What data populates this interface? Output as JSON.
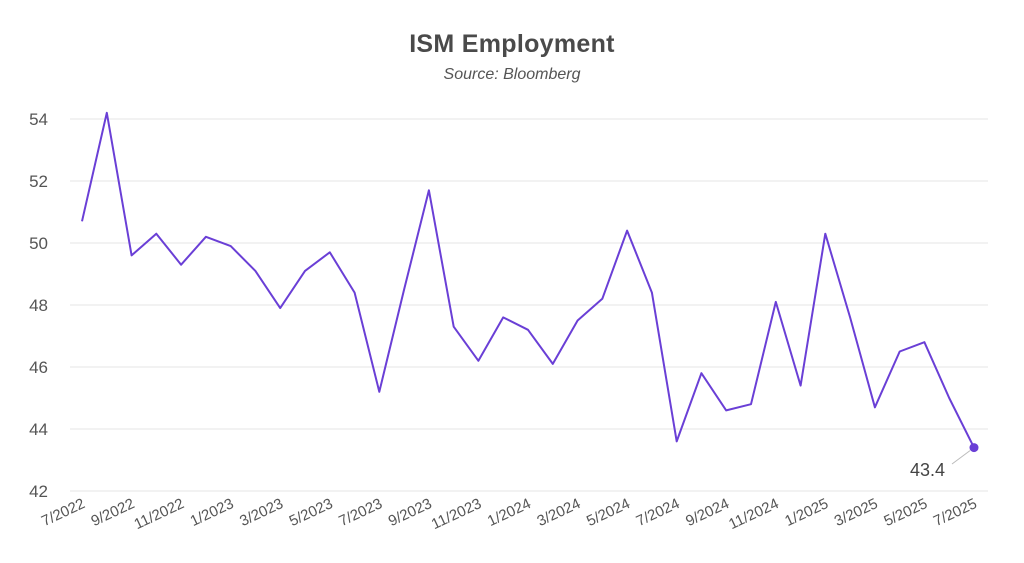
{
  "chart_data": {
    "type": "line",
    "title": "ISM Employment",
    "subtitle": "Source: Bloomberg",
    "xlabel": "",
    "ylabel": "",
    "ylim": [
      42,
      54
    ],
    "yticks": [
      42,
      44,
      46,
      48,
      50,
      52,
      54
    ],
    "x_tick_labels": [
      "7/2022",
      "9/2022",
      "11/2022",
      "1/2023",
      "3/2023",
      "5/2023",
      "7/2023",
      "9/2023",
      "11/2023",
      "1/2024",
      "3/2024",
      "5/2024",
      "7/2024",
      "9/2024",
      "11/2024",
      "1/2025",
      "3/2025",
      "5/2025",
      "7/2025"
    ],
    "grid": true,
    "legend": "none",
    "line_color": "#6a3fd6",
    "categories": [
      "7/2022",
      "8/2022",
      "9/2022",
      "10/2022",
      "11/2022",
      "12/2022",
      "1/2023",
      "2/2023",
      "3/2023",
      "4/2023",
      "5/2023",
      "6/2023",
      "7/2023",
      "8/2023",
      "9/2023",
      "10/2023",
      "11/2023",
      "12/2023",
      "1/2024",
      "2/2024",
      "3/2024",
      "4/2024",
      "5/2024",
      "6/2024",
      "7/2024",
      "8/2024",
      "9/2024",
      "10/2024",
      "11/2024",
      "12/2024",
      "1/2025",
      "2/2025",
      "3/2025",
      "4/2025",
      "5/2025",
      "6/2025",
      "7/2025"
    ],
    "values": [
      50.7,
      54.2,
      49.6,
      50.3,
      49.3,
      50.2,
      49.9,
      49.1,
      47.9,
      49.1,
      49.7,
      48.4,
      45.2,
      48.5,
      51.7,
      47.3,
      46.2,
      47.6,
      47.2,
      46.1,
      47.5,
      48.2,
      50.4,
      48.4,
      43.6,
      45.8,
      44.6,
      44.8,
      48.1,
      45.4,
      50.3,
      47.6,
      44.7,
      46.5,
      46.8,
      45.0,
      43.4
    ],
    "annotation": {
      "label": "43.4",
      "index": 36
    }
  }
}
